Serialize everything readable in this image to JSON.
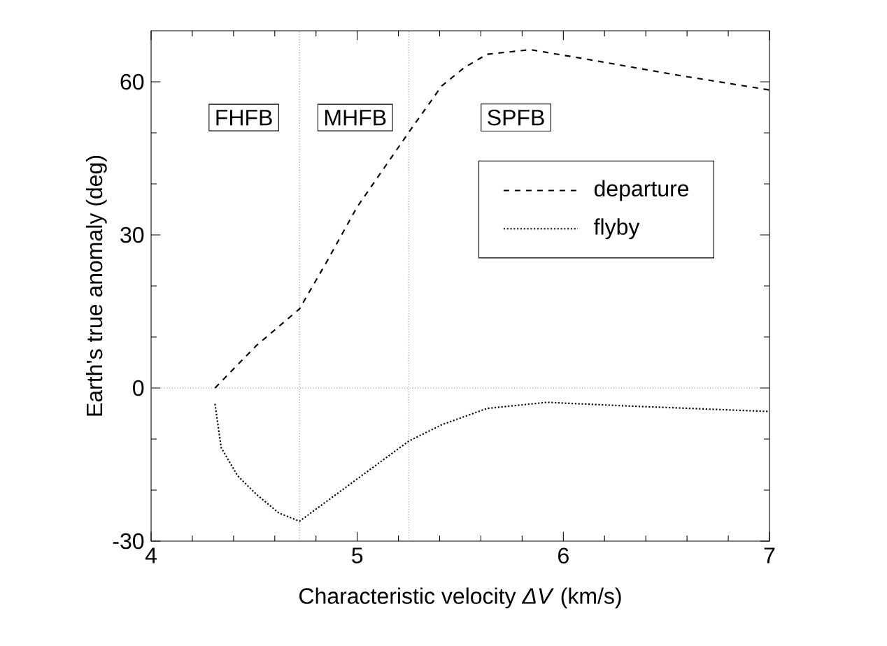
{
  "chart_data": {
    "type": "line",
    "xlabel": "Characteristic velocity *ΔV* (km/s)",
    "ylabel": "Earth's true anomaly (deg)",
    "xlim": [
      4,
      7
    ],
    "ylim": [
      -30,
      70
    ],
    "xticks": [
      4,
      5,
      6,
      7
    ],
    "yticks": [
      -30,
      0,
      30,
      60
    ],
    "legend": "right",
    "grid": false,
    "marker": "none",
    "series": [
      {
        "name": "departure",
        "color": "#000000",
        "line_style": "dashed",
        "x": [
          4.31,
          4.51,
          4.72,
          4.85,
          5.0,
          5.25,
          5.41,
          5.52,
          5.63,
          5.84,
          6.09,
          6.54,
          7.0
        ],
        "values": [
          0,
          8.3,
          15.5,
          24.6,
          35.5,
          50.1,
          59.2,
          62.8,
          65.4,
          66.3,
          64.6,
          61.4,
          58.4
        ]
      },
      {
        "name": "flyby",
        "color": "#000000",
        "line_style": "dotted",
        "x": [
          4.31,
          4.34,
          4.42,
          4.51,
          4.62,
          4.72,
          4.96,
          5.25,
          5.41,
          5.63,
          5.92,
          6.3,
          7.0
        ],
        "values": [
          -3.1,
          -11.7,
          -17.2,
          -20.8,
          -24.5,
          -26.1,
          -19.0,
          -10.4,
          -7.2,
          -4.0,
          -2.8,
          -3.5,
          -4.6
        ]
      }
    ],
    "ref_lines": [
      {
        "axis": "x",
        "value": 4.72,
        "color": "#808080",
        "line_style": "dotted"
      },
      {
        "axis": "x",
        "value": 5.25,
        "color": "#808080",
        "line_style": "dotted"
      },
      {
        "axis": "y",
        "value": 0,
        "color": "#808080",
        "line_style": "dotted"
      }
    ],
    "annotations": [
      "FHFB",
      "MHFB",
      "SPFB"
    ]
  }
}
